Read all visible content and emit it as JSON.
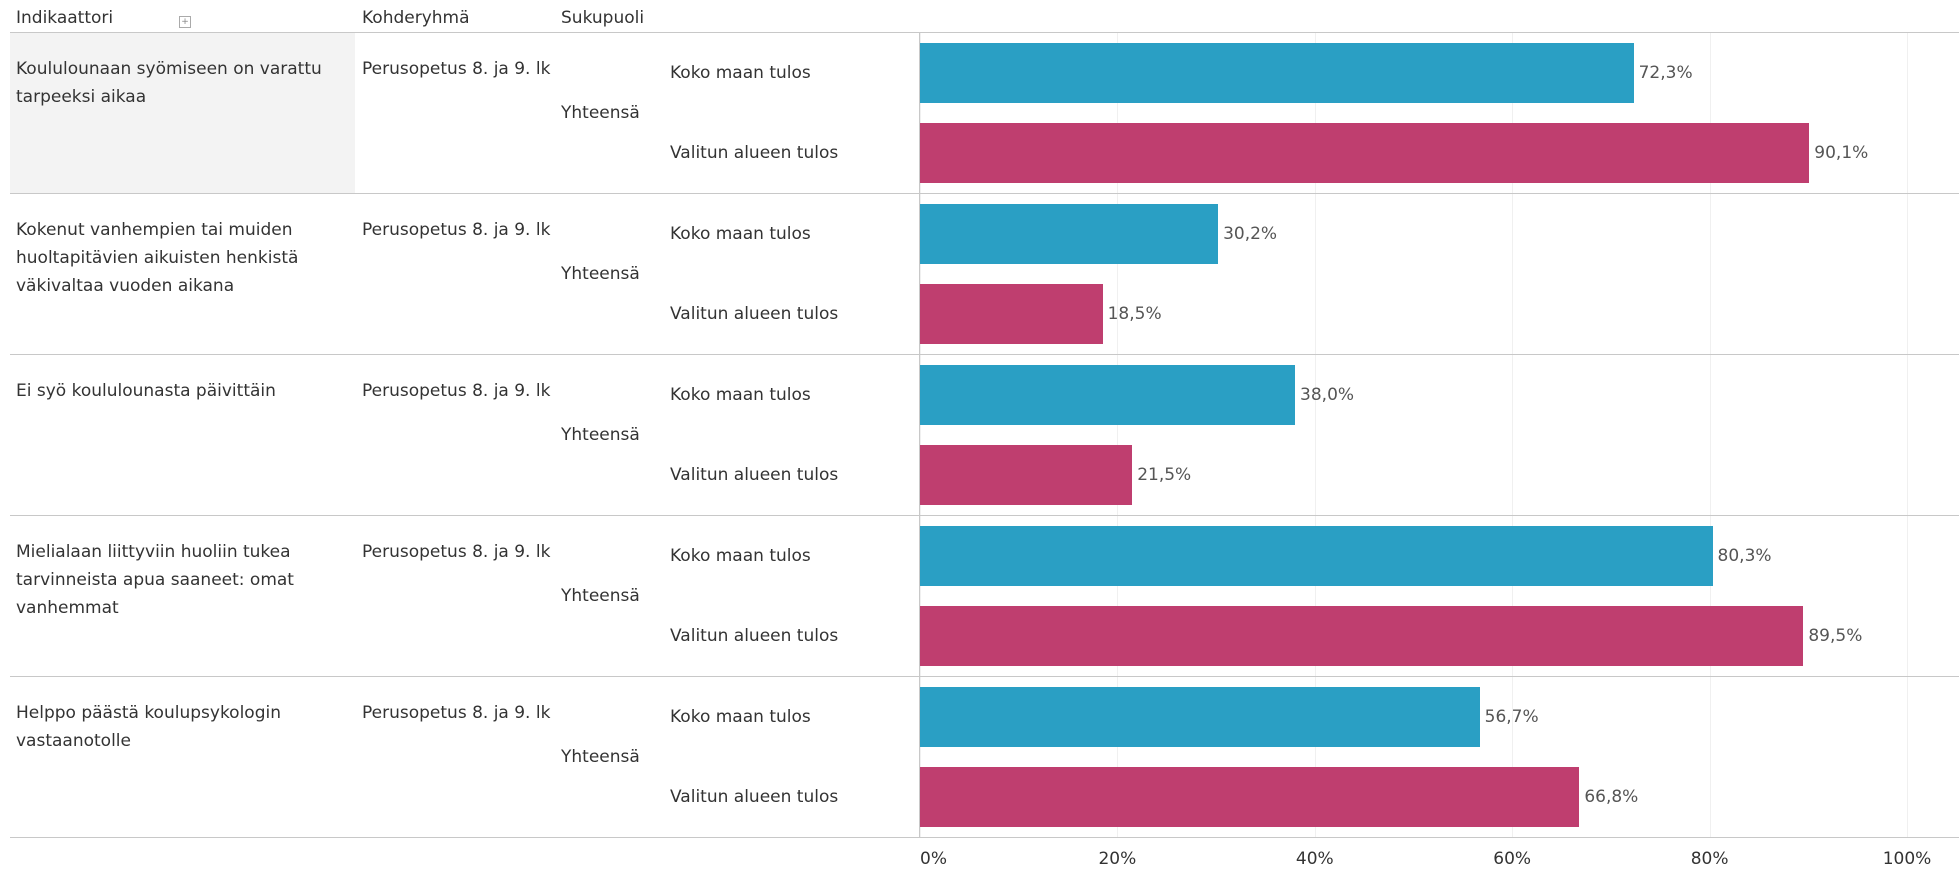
{
  "chart_data": {
    "type": "bar",
    "columns": [
      "Indikaattori",
      "Kohderyhmä",
      "Sukupuoli"
    ],
    "categories": [
      "Koululounaan syömiseen on varattu tarpeeksi aikaa",
      "Kokenut vanhempien tai muiden huoltapitävien aikuisten henkistä väkivaltaa vuoden aikana",
      "Ei syö koululounasta päivittäin",
      "Mielialaan liittyviin huoliin tukea tarvinneista apua saaneet: omat vanhemmat",
      "Helppo päästä koulupsykologin vastaanotolle"
    ],
    "groups": [
      "Perusopetus 8. ja 9. lk",
      "Perusopetus 8. ja 9. lk",
      "Perusopetus 8. ja 9. lk",
      "Perusopetus 8. ja 9. lk",
      "Perusopetus 8. ja 9. lk"
    ],
    "genders": [
      "Yhteensä",
      "Yhteensä",
      "Yhteensä",
      "Yhteensä",
      "Yhteensä"
    ],
    "series": [
      {
        "name": "Koko maan tulos",
        "color": "#2a9fc4",
        "values": [
          72.3,
          30.2,
          38.0,
          80.3,
          56.7
        ],
        "value_labels": [
          "72,3%",
          "30,2%",
          "38,0%",
          "80,3%",
          "56,7%"
        ]
      },
      {
        "name": "Valitun alueen tulos",
        "color": "#bf3e6f",
        "values": [
          90.1,
          18.5,
          21.5,
          89.5,
          66.8
        ],
        "value_labels": [
          "90,1%",
          "18,5%",
          "21,5%",
          "89,5%",
          "66,8%"
        ]
      }
    ],
    "xlim": [
      0,
      100
    ],
    "xticks": [
      {
        "value": 0,
        "label": "0%"
      },
      {
        "value": 20,
        "label": "20%"
      },
      {
        "value": 40,
        "label": "40%"
      },
      {
        "value": 60,
        "label": "60%"
      },
      {
        "value": 80,
        "label": "80%"
      },
      {
        "value": 100,
        "label": "100%"
      }
    ],
    "grid": true
  }
}
